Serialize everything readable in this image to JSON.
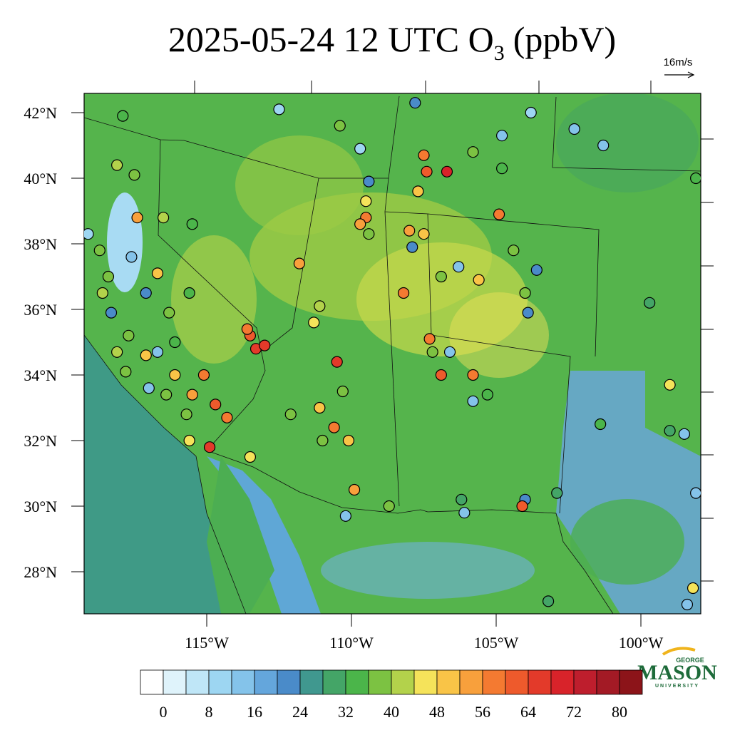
{
  "title": {
    "text": "2025-05-24 12 UTC O",
    "subscript": "3",
    "suffix": "(ppbV)"
  },
  "wind_reference": "16m/s",
  "lat_ticks": [
    {
      "value": 42,
      "label": "42°N"
    },
    {
      "value": 40,
      "label": "40°N"
    },
    {
      "value": 38,
      "label": "38°N"
    },
    {
      "value": 36,
      "label": "36°N"
    },
    {
      "value": 34,
      "label": "34°N"
    },
    {
      "value": 32,
      "label": "32°N"
    },
    {
      "value": 30,
      "label": "30°N"
    },
    {
      "value": 28,
      "label": "28°N"
    }
  ],
  "lon_ticks": [
    {
      "value": -115,
      "label": "115°W"
    },
    {
      "value": -110,
      "label": "110°W"
    },
    {
      "value": -105,
      "label": "105°W"
    },
    {
      "value": -100,
      "label": "100°W"
    }
  ],
  "colorbar": {
    "levels": [
      0,
      4,
      8,
      12,
      16,
      20,
      24,
      28,
      32,
      36,
      40,
      44,
      48,
      52,
      56,
      60,
      64,
      68,
      72,
      76,
      80
    ],
    "ticks": [
      0,
      8,
      16,
      24,
      32,
      40,
      48,
      56,
      64,
      72,
      80
    ],
    "colors": [
      "#ffffff",
      "#dff3fb",
      "#bfe6f7",
      "#9dd6f2",
      "#84c3ea",
      "#64a6dc",
      "#4a8bc9",
      "#40988f",
      "#44a567",
      "#4bb54a",
      "#7cc242",
      "#b3d24b",
      "#f5e35a",
      "#f9c447",
      "#f8a03c",
      "#f47a31",
      "#ee5a2c",
      "#e33a2a",
      "#d8232a",
      "#be1e2d",
      "#a31a25",
      "#8c1419"
    ]
  },
  "logo": {
    "top": "GEORGE",
    "name": "MASON",
    "bottom": "UNIVERSITY"
  },
  "stations": [
    {
      "lon": -117.9,
      "lat": 41.9,
      "value": 34
    },
    {
      "lon": -112.5,
      "lat": 42.1,
      "value": 8
    },
    {
      "lon": -110.4,
      "lat": 41.6,
      "value": 36
    },
    {
      "lon": -107.8,
      "lat": 42.3,
      "value": 22
    },
    {
      "lon": -104.8,
      "lat": 41.3,
      "value": 12
    },
    {
      "lon": -103.8,
      "lat": 42.0,
      "value": 10
    },
    {
      "lon": -102.3,
      "lat": 41.5,
      "value": 12
    },
    {
      "lon": -101.3,
      "lat": 41.0,
      "value": 12
    },
    {
      "lon": -109.7,
      "lat": 40.9,
      "value": 10
    },
    {
      "lon": -107.5,
      "lat": 40.7,
      "value": 56
    },
    {
      "lon": -107.4,
      "lat": 40.2,
      "value": 62
    },
    {
      "lon": -106.7,
      "lat": 40.2,
      "value": 68
    },
    {
      "lon": -105.8,
      "lat": 40.8,
      "value": 36
    },
    {
      "lon": -104.8,
      "lat": 40.3,
      "value": 34
    },
    {
      "lon": -107.7,
      "lat": 39.6,
      "value": 48
    },
    {
      "lon": -104.9,
      "lat": 38.9,
      "value": 56
    },
    {
      "lon": -109.4,
      "lat": 39.9,
      "value": 22
    },
    {
      "lon": -109.5,
      "lat": 39.3,
      "value": 44
    },
    {
      "lon": -109.5,
      "lat": 38.8,
      "value": 56
    },
    {
      "lon": -109.7,
      "lat": 38.6,
      "value": 52
    },
    {
      "lon": -109.4,
      "lat": 38.3,
      "value": 36
    },
    {
      "lon": -108.0,
      "lat": 38.4,
      "value": 54
    },
    {
      "lon": -107.5,
      "lat": 38.3,
      "value": 50
    },
    {
      "lon": -107.9,
      "lat": 37.9,
      "value": 22
    },
    {
      "lon": -106.3,
      "lat": 37.3,
      "value": 14
    },
    {
      "lon": -106.9,
      "lat": 37.0,
      "value": 36
    },
    {
      "lon": -105.6,
      "lat": 36.9,
      "value": 48
    },
    {
      "lon": -108.2,
      "lat": 36.5,
      "value": 56
    },
    {
      "lon": -104.4,
      "lat": 37.8,
      "value": 38
    },
    {
      "lon": -103.6,
      "lat": 37.2,
      "value": 22
    },
    {
      "lon": -104.0,
      "lat": 36.5,
      "value": 38
    },
    {
      "lon": -103.9,
      "lat": 35.9,
      "value": 22
    },
    {
      "lon": -99.7,
      "lat": 36.2,
      "value": 30
    },
    {
      "lon": -98.1,
      "lat": 40.0,
      "value": 34
    },
    {
      "lon": -99.0,
      "lat": 33.7,
      "value": 44
    },
    {
      "lon": -99.0,
      "lat": 32.3,
      "value": 28
    },
    {
      "lon": -98.5,
      "lat": 32.2,
      "value": 14
    },
    {
      "lon": -101.4,
      "lat": 32.5,
      "value": 34
    },
    {
      "lon": -102.9,
      "lat": 30.4,
      "value": 28
    },
    {
      "lon": -104.0,
      "lat": 30.2,
      "value": 22
    },
    {
      "lon": -104.1,
      "lat": 30.0,
      "value": 60
    },
    {
      "lon": -106.1,
      "lat": 29.8,
      "value": 12
    },
    {
      "lon": -106.2,
      "lat": 30.2,
      "value": 28
    },
    {
      "lon": -105.3,
      "lat": 33.4,
      "value": 34
    },
    {
      "lon": -105.8,
      "lat": 33.2,
      "value": 12
    },
    {
      "lon": -105.8,
      "lat": 34.0,
      "value": 56
    },
    {
      "lon": -106.9,
      "lat": 34.0,
      "value": 60
    },
    {
      "lon": -106.6,
      "lat": 34.7,
      "value": 12
    },
    {
      "lon": -107.3,
      "lat": 35.1,
      "value": 56
    },
    {
      "lon": -107.2,
      "lat": 34.7,
      "value": 36
    },
    {
      "lon": -108.7,
      "lat": 30.0,
      "value": 36
    },
    {
      "lon": -110.2,
      "lat": 29.7,
      "value": 12
    },
    {
      "lon": -109.9,
      "lat": 30.5,
      "value": 52
    },
    {
      "lon": -110.6,
      "lat": 32.4,
      "value": 56
    },
    {
      "lon": -110.1,
      "lat": 32.0,
      "value": 48
    },
    {
      "lon": -111.0,
      "lat": 32.0,
      "value": 36
    },
    {
      "lon": -111.1,
      "lat": 33.0,
      "value": 48
    },
    {
      "lon": -112.1,
      "lat": 32.8,
      "value": 38
    },
    {
      "lon": -110.3,
      "lat": 33.5,
      "value": 36
    },
    {
      "lon": -110.5,
      "lat": 34.4,
      "value": 64
    },
    {
      "lon": -111.3,
      "lat": 35.6,
      "value": 44
    },
    {
      "lon": -111.1,
      "lat": 36.1,
      "value": 40
    },
    {
      "lon": -111.8,
      "lat": 37.4,
      "value": 54
    },
    {
      "lon": -113.5,
      "lat": 35.2,
      "value": 60
    },
    {
      "lon": -113.3,
      "lat": 34.8,
      "value": 64
    },
    {
      "lon": -113.0,
      "lat": 34.9,
      "value": 66
    },
    {
      "lon": -113.6,
      "lat": 35.4,
      "value": 56
    },
    {
      "lon": -113.5,
      "lat": 31.5,
      "value": 44
    },
    {
      "lon": -114.9,
      "lat": 31.8,
      "value": 64
    },
    {
      "lon": -114.7,
      "lat": 33.1,
      "value": 60
    },
    {
      "lon": -114.3,
      "lat": 32.7,
      "value": 56
    },
    {
      "lon": -115.1,
      "lat": 34.0,
      "value": 56
    },
    {
      "lon": -115.5,
      "lat": 33.4,
      "value": 52
    },
    {
      "lon": -115.7,
      "lat": 32.8,
      "value": 38
    },
    {
      "lon": -115.6,
      "lat": 32.0,
      "value": 44
    },
    {
      "lon": -116.1,
      "lat": 34.0,
      "value": 48
    },
    {
      "lon": -117.1,
      "lat": 34.6,
      "value": 48
    },
    {
      "lon": -116.4,
      "lat": 33.4,
      "value": 36
    },
    {
      "lon": -117.4,
      "lat": 38.8,
      "value": 54
    },
    {
      "lon": -116.7,
      "lat": 37.1,
      "value": 48
    },
    {
      "lon": -116.3,
      "lat": 35.9,
      "value": 38
    },
    {
      "lon": -116.1,
      "lat": 35.0,
      "value": 34
    },
    {
      "lon": -115.6,
      "lat": 36.5,
      "value": 34
    },
    {
      "lon": -115.5,
      "lat": 38.6,
      "value": 34
    },
    {
      "lon": -116.5,
      "lat": 38.8,
      "value": 40
    },
    {
      "lon": -117.5,
      "lat": 40.1,
      "value": 36
    },
    {
      "lon": -118.1,
      "lat": 40.4,
      "value": 40
    },
    {
      "lon": -119.1,
      "lat": 38.3,
      "value": 10
    },
    {
      "lon": -118.7,
      "lat": 37.8,
      "value": 38
    },
    {
      "lon": -118.4,
      "lat": 37.0,
      "value": 38
    },
    {
      "lon": -118.6,
      "lat": 36.5,
      "value": 42
    },
    {
      "lon": -118.3,
      "lat": 35.9,
      "value": 20
    },
    {
      "lon": -117.6,
      "lat": 37.6,
      "value": 14
    },
    {
      "lon": -117.1,
      "lat": 36.5,
      "value": 22
    },
    {
      "lon": -118.1,
      "lat": 34.7,
      "value": 40
    },
    {
      "lon": -117.7,
      "lat": 35.2,
      "value": 36
    },
    {
      "lon": -117.8,
      "lat": 34.1,
      "value": 36
    },
    {
      "lon": -117.0,
      "lat": 33.6,
      "value": 12
    },
    {
      "lon": -116.7,
      "lat": 34.7,
      "value": 12
    },
    {
      "lon": -98.1,
      "lat": 30.4,
      "value": 14
    },
    {
      "lon": -98.2,
      "lat": 27.5,
      "value": 44
    },
    {
      "lon": -98.4,
      "lat": 27.0,
      "value": 12
    },
    {
      "lon": -103.2,
      "lat": 27.1,
      "value": 28
    }
  ]
}
